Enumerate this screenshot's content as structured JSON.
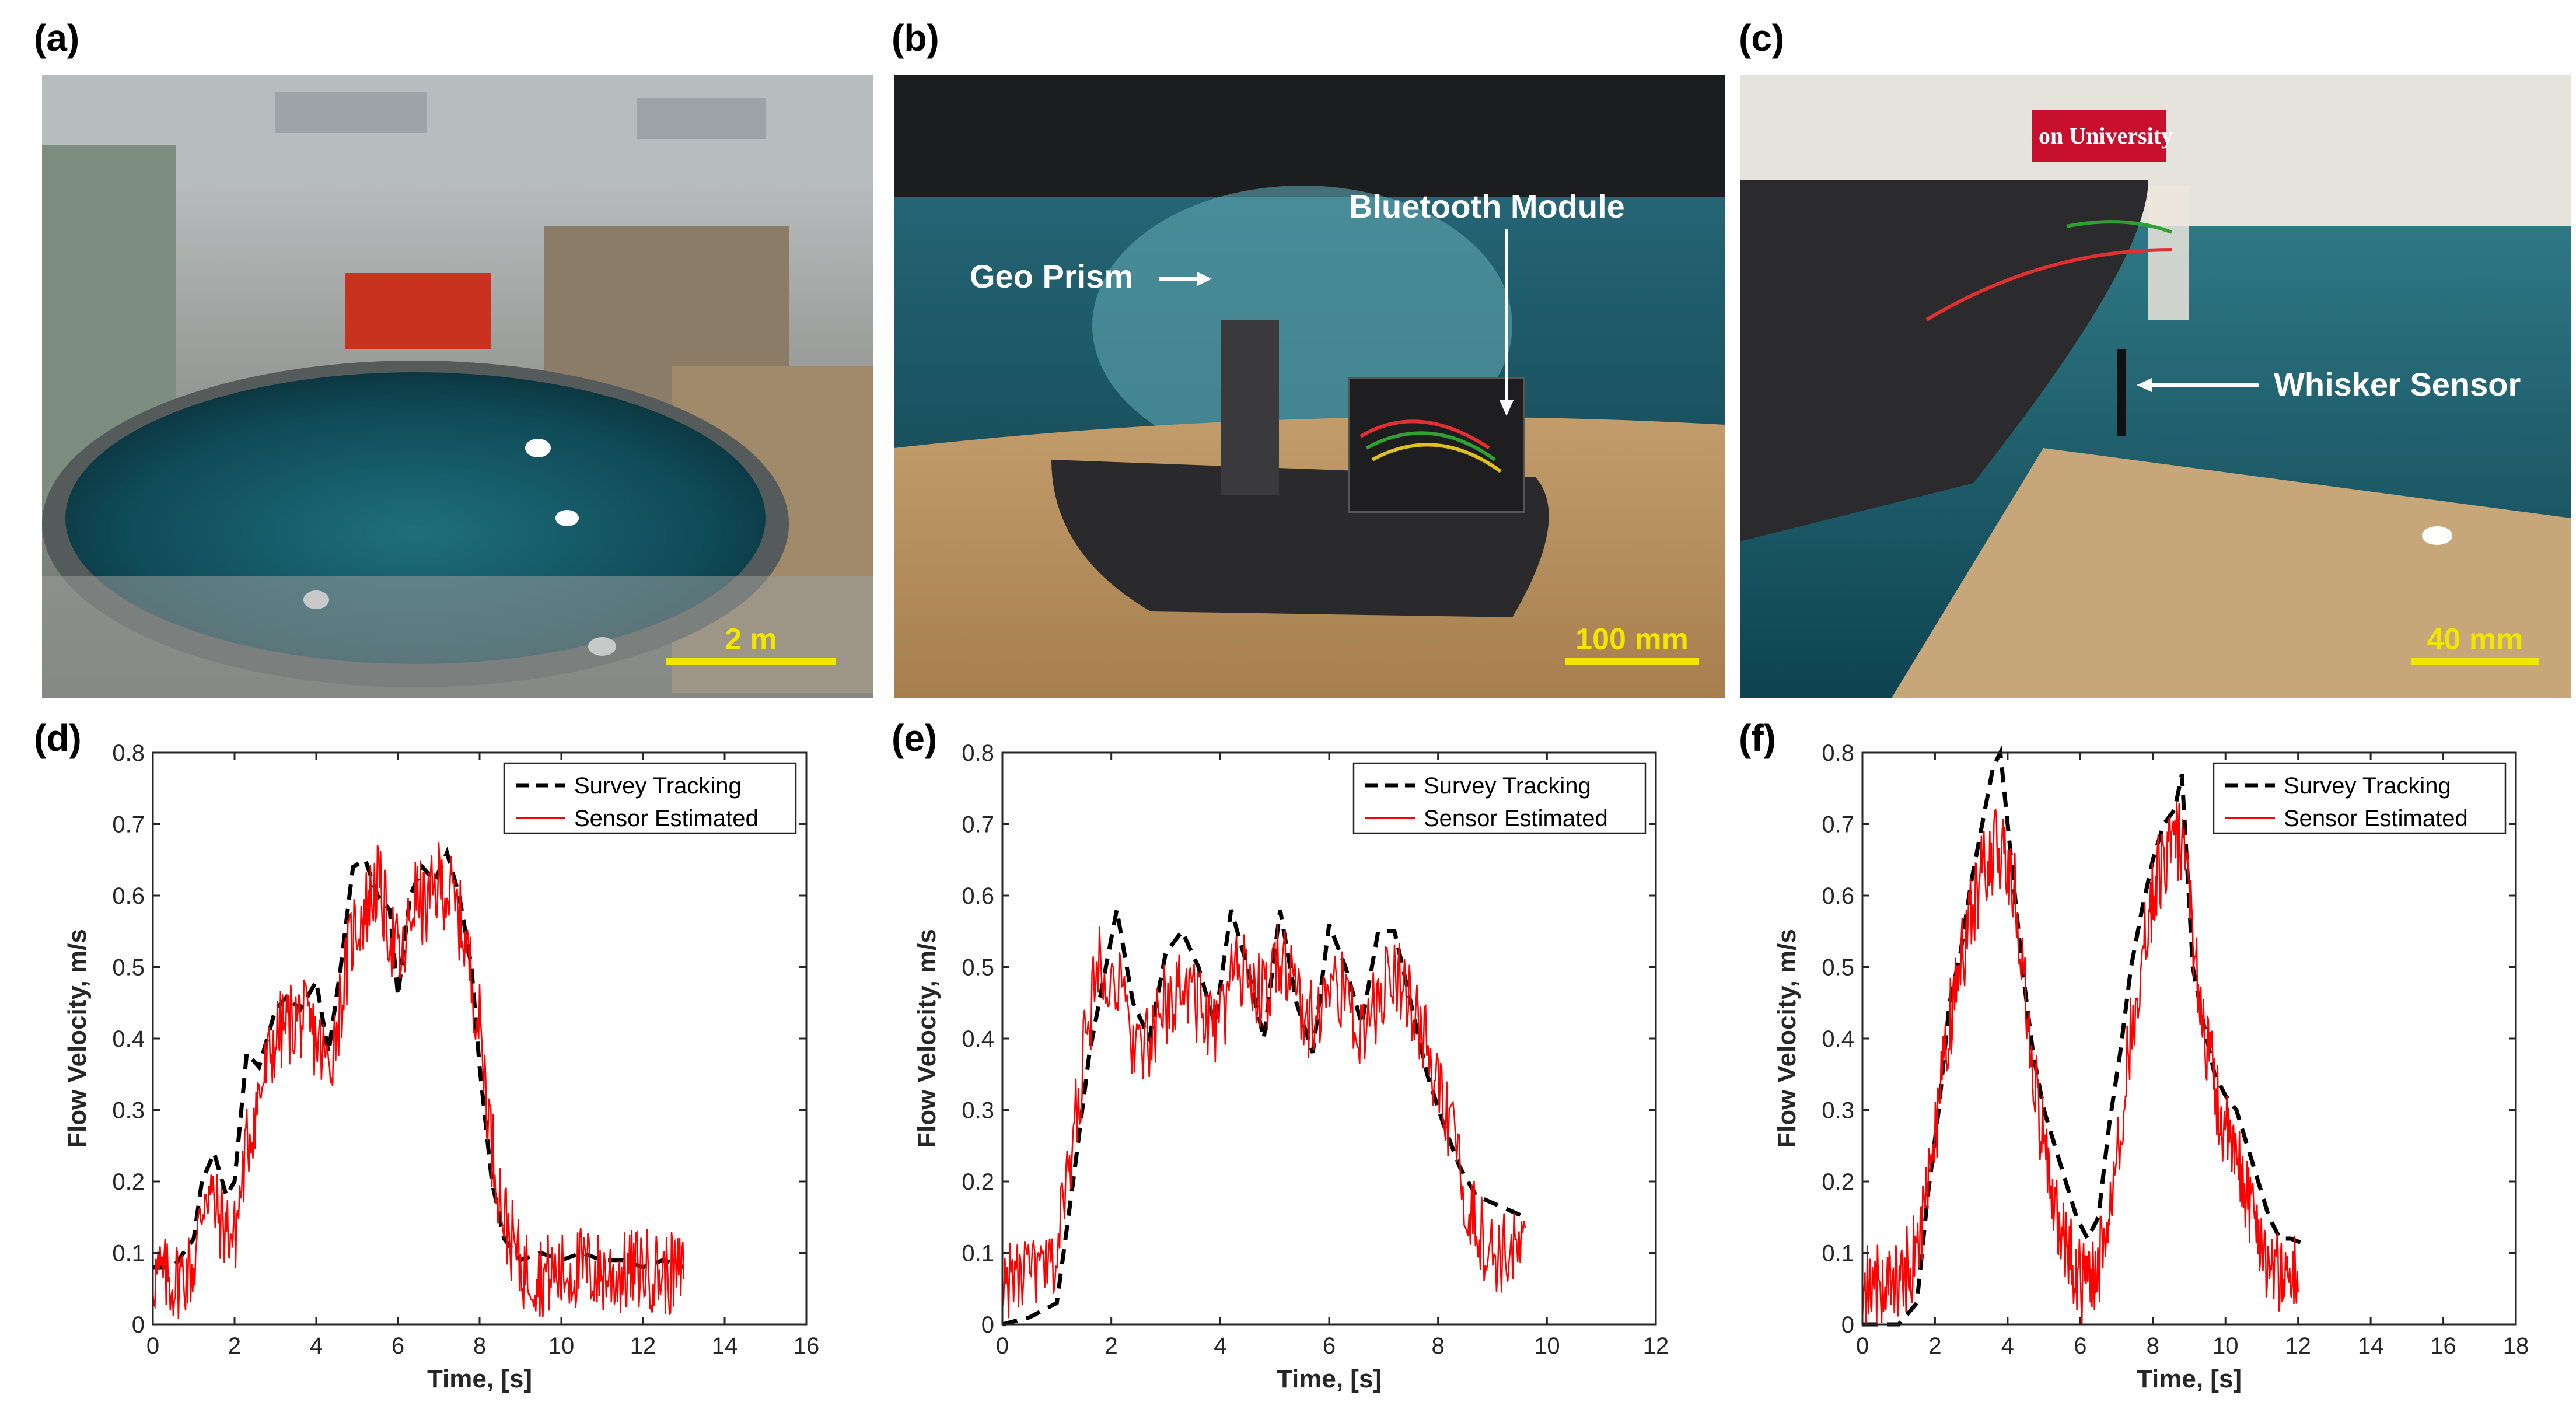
{
  "panels": {
    "a": {
      "label": "(a)",
      "scale": "2 m"
    },
    "b": {
      "label": "(b)",
      "scale": "100 mm",
      "ann_prism": "Geo Prism",
      "ann_bt": "Bluetooth Module"
    },
    "c": {
      "label": "(c)",
      "scale": "40 mm",
      "ann_whisker": "Whisker Sensor",
      "sign_text": "on University"
    },
    "d": {
      "label": "(d)"
    },
    "e": {
      "label": "(e)"
    },
    "f": {
      "label": "(f)"
    }
  },
  "colors": {
    "survey": "#000000",
    "sensor": "#ff0000",
    "scale_bar": "#f2e600"
  },
  "chart_data": [
    {
      "type": "line",
      "xlabel": "Time, [s]",
      "ylabel": "Flow Velocity, m/s",
      "xlim": [
        0,
        16
      ],
      "ylim": [
        0,
        0.8
      ],
      "xticks": [
        "0",
        "2",
        "4",
        "6",
        "8",
        "10",
        "12",
        "14",
        "16"
      ],
      "yticks": [
        "0",
        "0.1",
        "0.2",
        "0.3",
        "0.4",
        "0.5",
        "0.6",
        "0.7",
        "0.8"
      ],
      "legend": {
        "position": "top-right"
      },
      "grid": false,
      "series": [
        {
          "name": "Survey Tracking",
          "style": "dashed",
          "x": [
            0,
            0.5,
            1,
            1.2,
            1.5,
            1.8,
            2,
            2.3,
            2.6,
            3,
            3.3,
            3.6,
            4,
            4.3,
            4.6,
            4.9,
            5.2,
            5.5,
            5.8,
            6,
            6.3,
            6.6,
            6.9,
            7.2,
            7.5,
            7.8,
            8,
            8.3,
            8.6,
            9,
            9.5,
            10,
            10.5,
            11,
            11.5,
            12,
            12.5,
            13
          ],
          "y": [
            0.08,
            0.08,
            0.12,
            0.2,
            0.24,
            0.18,
            0.2,
            0.38,
            0.36,
            0.44,
            0.46,
            0.44,
            0.48,
            0.38,
            0.5,
            0.64,
            0.65,
            0.6,
            0.58,
            0.46,
            0.6,
            0.64,
            0.62,
            0.66,
            0.6,
            0.5,
            0.36,
            0.2,
            0.12,
            0.09,
            0.1,
            0.09,
            0.1,
            0.09,
            0.09,
            0.08,
            0.09,
            0.08
          ]
        },
        {
          "name": "Sensor Estimated",
          "style": "solid",
          "x": [
            0,
            0.5,
            1,
            1.3,
            1.6,
            2,
            2.3,
            2.6,
            3,
            3.3,
            3.6,
            4,
            4.3,
            4.6,
            4.9,
            5.2,
            5.5,
            5.8,
            6.1,
            6.4,
            6.7,
            7,
            7.3,
            7.6,
            8,
            8.3,
            8.6,
            9,
            9.5,
            10,
            10.5,
            11,
            11.5,
            12,
            12.5,
            13
          ],
          "y": [
            0.07,
            0.06,
            0.08,
            0.2,
            0.15,
            0.12,
            0.25,
            0.32,
            0.4,
            0.42,
            0.43,
            0.4,
            0.36,
            0.45,
            0.55,
            0.58,
            0.62,
            0.55,
            0.5,
            0.6,
            0.58,
            0.62,
            0.6,
            0.55,
            0.42,
            0.25,
            0.15,
            0.08,
            0.07,
            0.07,
            0.08,
            0.07,
            0.07,
            0.08,
            0.07,
            0.07
          ],
          "noise": 0.06,
          "n": 520
        }
      ]
    },
    {
      "type": "line",
      "xlabel": "Time, [s]",
      "ylabel": "Flow Velocity, m/s",
      "xlim": [
        0,
        12
      ],
      "ylim": [
        0,
        0.8
      ],
      "xticks": [
        "0",
        "2",
        "4",
        "6",
        "8",
        "10",
        "12"
      ],
      "yticks": [
        "0",
        "0.1",
        "0.2",
        "0.3",
        "0.4",
        "0.5",
        "0.6",
        "0.7",
        "0.8"
      ],
      "legend": {
        "position": "top-right"
      },
      "grid": false,
      "series": [
        {
          "name": "Survey Tracking",
          "style": "dashed",
          "x": [
            0,
            0.5,
            1,
            1.3,
            1.6,
            1.9,
            2.1,
            2.4,
            2.7,
            3,
            3.3,
            3.6,
            3.9,
            4.2,
            4.5,
            4.8,
            5.1,
            5.4,
            5.7,
            6,
            6.3,
            6.6,
            6.9,
            7.2,
            7.5,
            7.8,
            8.1,
            8.4,
            8.7,
            9,
            9.3,
            9.6
          ],
          "y": [
            0,
            0.01,
            0.03,
            0.2,
            0.38,
            0.5,
            0.58,
            0.45,
            0.4,
            0.52,
            0.55,
            0.5,
            0.42,
            0.58,
            0.5,
            0.4,
            0.58,
            0.45,
            0.38,
            0.56,
            0.5,
            0.42,
            0.55,
            0.55,
            0.45,
            0.35,
            0.28,
            0.22,
            0.18,
            0.17,
            0.16,
            0.15
          ]
        },
        {
          "name": "Sensor Estimated",
          "style": "solid",
          "x": [
            0,
            0.5,
            0.9,
            1.2,
            1.5,
            1.8,
            2.1,
            2.4,
            2.7,
            3,
            3.3,
            3.6,
            3.9,
            4.2,
            4.5,
            4.8,
            5.1,
            5.4,
            5.7,
            6,
            6.3,
            6.6,
            6.9,
            7.2,
            7.5,
            7.8,
            8.1,
            8.4,
            8.7,
            9,
            9.3,
            9.6
          ],
          "y": [
            0.06,
            0.07,
            0.07,
            0.2,
            0.38,
            0.52,
            0.48,
            0.4,
            0.38,
            0.45,
            0.48,
            0.45,
            0.4,
            0.48,
            0.5,
            0.45,
            0.52,
            0.46,
            0.42,
            0.48,
            0.46,
            0.4,
            0.45,
            0.5,
            0.46,
            0.38,
            0.3,
            0.22,
            0.14,
            0.1,
            0.1,
            0.1
          ],
          "noise": 0.06,
          "n": 420
        }
      ]
    },
    {
      "type": "line",
      "xlabel": "Time, [s]",
      "ylabel": "Flow Velocity, m/s",
      "xlim": [
        0,
        18
      ],
      "ylim": [
        0,
        0.8
      ],
      "xticks": [
        "0",
        "2",
        "4",
        "6",
        "8",
        "10",
        "12",
        "14",
        "16",
        "18"
      ],
      "yticks": [
        "0",
        "0.1",
        "0.2",
        "0.3",
        "0.4",
        "0.5",
        "0.6",
        "0.7",
        "0.8"
      ],
      "legend": {
        "position": "top-right"
      },
      "grid": false,
      "series": [
        {
          "name": "Survey Tracking",
          "style": "dashed",
          "x": [
            0,
            0.5,
            1,
            1.5,
            1.8,
            2.1,
            2.4,
            2.7,
            3,
            3.3,
            3.6,
            3.8,
            4.1,
            4.4,
            4.7,
            5,
            5.3,
            5.6,
            5.9,
            6.2,
            6.5,
            6.8,
            7.1,
            7.4,
            7.7,
            8,
            8.3,
            8.6,
            8.8,
            9.1,
            9.4,
            9.7,
            10,
            10.3,
            10.6,
            10.9,
            11.2,
            11.5,
            11.8,
            12.3
          ],
          "y": [
            0,
            0,
            0,
            0.03,
            0.18,
            0.3,
            0.45,
            0.52,
            0.62,
            0.7,
            0.78,
            0.8,
            0.65,
            0.5,
            0.38,
            0.3,
            0.25,
            0.2,
            0.15,
            0.12,
            0.15,
            0.28,
            0.38,
            0.5,
            0.58,
            0.65,
            0.7,
            0.72,
            0.77,
            0.5,
            0.42,
            0.35,
            0.32,
            0.3,
            0.25,
            0.2,
            0.15,
            0.12,
            0.12,
            0.11
          ]
        },
        {
          "name": "Sensor Estimated",
          "style": "solid",
          "x": [
            0,
            0.5,
            1,
            1.5,
            1.8,
            2.1,
            2.4,
            2.7,
            3,
            3.3,
            3.6,
            3.9,
            4.2,
            4.5,
            4.8,
            5.1,
            5.4,
            5.7,
            6,
            6.3,
            6.6,
            6.9,
            7.2,
            7.5,
            7.8,
            8.1,
            8.4,
            8.7,
            9,
            9.3,
            9.6,
            9.9,
            10.2,
            10.5,
            10.8,
            11.1,
            11.4,
            11.7,
            12
          ],
          "y": [
            0.05,
            0.06,
            0.06,
            0.1,
            0.2,
            0.3,
            0.42,
            0.5,
            0.58,
            0.63,
            0.66,
            0.67,
            0.6,
            0.45,
            0.32,
            0.22,
            0.15,
            0.1,
            0.06,
            0.06,
            0.1,
            0.2,
            0.32,
            0.45,
            0.55,
            0.62,
            0.66,
            0.68,
            0.6,
            0.45,
            0.36,
            0.28,
            0.24,
            0.2,
            0.15,
            0.1,
            0.07,
            0.07,
            0.07
          ],
          "noise": 0.06,
          "n": 520
        }
      ]
    }
  ]
}
